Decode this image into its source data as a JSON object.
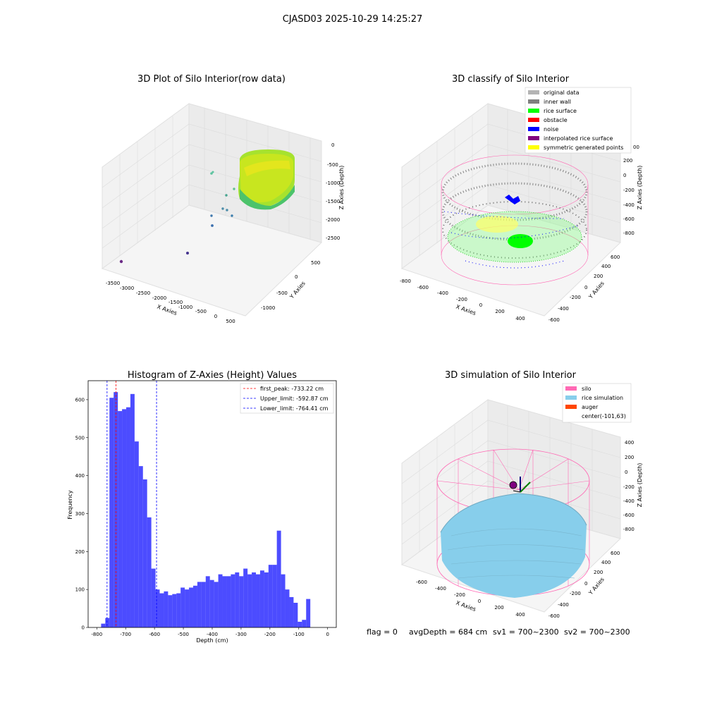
{
  "suptitle": "CJASD03 2025-10-29 14:25:27",
  "footer": {
    "flag": "flag = 0",
    "avg_depth": "avgDepth = 684 cm",
    "sv1": "sv1 = 700~2300",
    "sv2": "sv2 = 700~2300"
  },
  "colors": {
    "original_data": "#b3b3b3",
    "inner_wall": "#808080",
    "rice_surface": "#00ff00",
    "obstacle": "#ff0000",
    "noise": "#0000ff",
    "interpolated_rice_surface": "#800080",
    "symmetric_generated_points": "#ffff00",
    "silo": "#ff69b4",
    "rice_simulation": "#87ceeb",
    "auger": "#ff4500",
    "histogram_bar": "#0000ff",
    "first_peak_line": "#ff0000",
    "limit_line": "#0000ff"
  },
  "chart_data": [
    {
      "type": "scatter3d",
      "title": "3D Plot of Silo Interior(row data)",
      "xlabel": "X Axies",
      "ylabel": "Y Axies",
      "zlabel": "Z Axies (Depth)",
      "xticks": [
        "-3500",
        "-3000",
        "-2500",
        "-2000",
        "-1500",
        "-1000",
        "-500",
        "0",
        "500"
      ],
      "yticks": [
        "500",
        "0",
        "-500",
        "-1000"
      ],
      "zticks": [
        "0",
        "-500",
        "-1000",
        "-1500",
        "-2000",
        "-2500"
      ]
    },
    {
      "type": "scatter3d",
      "title": "3D classify of Silo Interior",
      "xlabel": "X Axies",
      "ylabel": "Y Axies",
      "zlabel": "Z Axies (Depth)",
      "xticks": [
        "-800",
        "-600",
        "-400",
        "-200",
        "0",
        "200",
        "400"
      ],
      "yticks": [
        "600",
        "400",
        "200",
        "0",
        "-200",
        "-400",
        "-600"
      ],
      "zticks": [
        "200",
        "0",
        "-200",
        "-400",
        "-600",
        "-800"
      ],
      "z_top_partial": "00",
      "legend": [
        "original data",
        "inner wall",
        "rice surface",
        "obstacle",
        "noise",
        "interpolated rice surface",
        "symmetric generated points"
      ],
      "legend_placement": "top-right"
    },
    {
      "type": "bar",
      "title": "Histogram of Z-Axies (Height) Values",
      "xlabel": "Depth (cm)",
      "ylabel": "Frequency",
      "xlim": [
        -830,
        30
      ],
      "ylim": [
        0,
        650
      ],
      "xticks": [
        -800,
        -700,
        -600,
        -500,
        -400,
        -300,
        -200,
        -100,
        0
      ],
      "yticks": [
        0,
        100,
        200,
        300,
        400,
        500,
        600
      ],
      "bin_width": 14.5,
      "bin_start": -785,
      "values": [
        10,
        25,
        605,
        620,
        570,
        575,
        580,
        615,
        490,
        425,
        390,
        290,
        155,
        100,
        90,
        95,
        85,
        88,
        90,
        105,
        100,
        105,
        110,
        120,
        120,
        135,
        125,
        120,
        140,
        135,
        135,
        140,
        145,
        135,
        155,
        140,
        145,
        140,
        150,
        145,
        165,
        165,
        255,
        140,
        100,
        80,
        65,
        15,
        20,
        75
      ],
      "vlines": [
        {
          "label": "first_peak: -733.22 cm",
          "x": -733.22,
          "color": "#ff0000"
        },
        {
          "label": "Upper_limit: -592.87 cm",
          "x": -592.87,
          "color": "#0000ff"
        },
        {
          "label": "Lower_limit: -764.41 cm",
          "x": -764.41,
          "color": "#0000ff"
        }
      ],
      "legend_placement": "top-right"
    },
    {
      "type": "surface3d",
      "title": "3D simulation of Silo Interior",
      "xlabel": "X Axies",
      "ylabel": "Y Axies",
      "zlabel": "Z Axies (Depth)",
      "xticks": [
        "-600",
        "-400",
        "-200",
        "0",
        "200",
        "400"
      ],
      "yticks": [
        "600",
        "400",
        "200",
        "0",
        "-200",
        "-400",
        "-600"
      ],
      "zticks": [
        "400",
        "200",
        "0",
        "-200",
        "-400",
        "-600",
        "-800"
      ],
      "legend": [
        "silo",
        "rice simulation",
        "auger",
        "center(-101,63)"
      ],
      "legend_placement": "top-right"
    }
  ]
}
